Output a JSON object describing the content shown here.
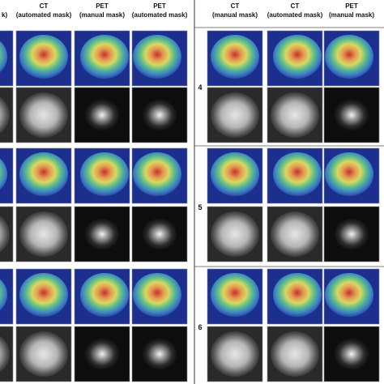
{
  "left_panel": {
    "partial_header": "k)",
    "columns": [
      {
        "line1": "CT",
        "line2": "(automated mask)"
      },
      {
        "line1": "PET",
        "line2": "(manual mask)"
      },
      {
        "line1": "PET",
        "line2": "(automated mask)"
      }
    ]
  },
  "right_panel": {
    "columns": [
      {
        "line1": "CT",
        "line2": "(manual mask)"
      },
      {
        "line1": "CT",
        "line2": "(automated mask)"
      },
      {
        "line1": "PET",
        "line2": "(manual mask)"
      }
    ],
    "row_labels": [
      "4",
      "5",
      "6"
    ]
  }
}
